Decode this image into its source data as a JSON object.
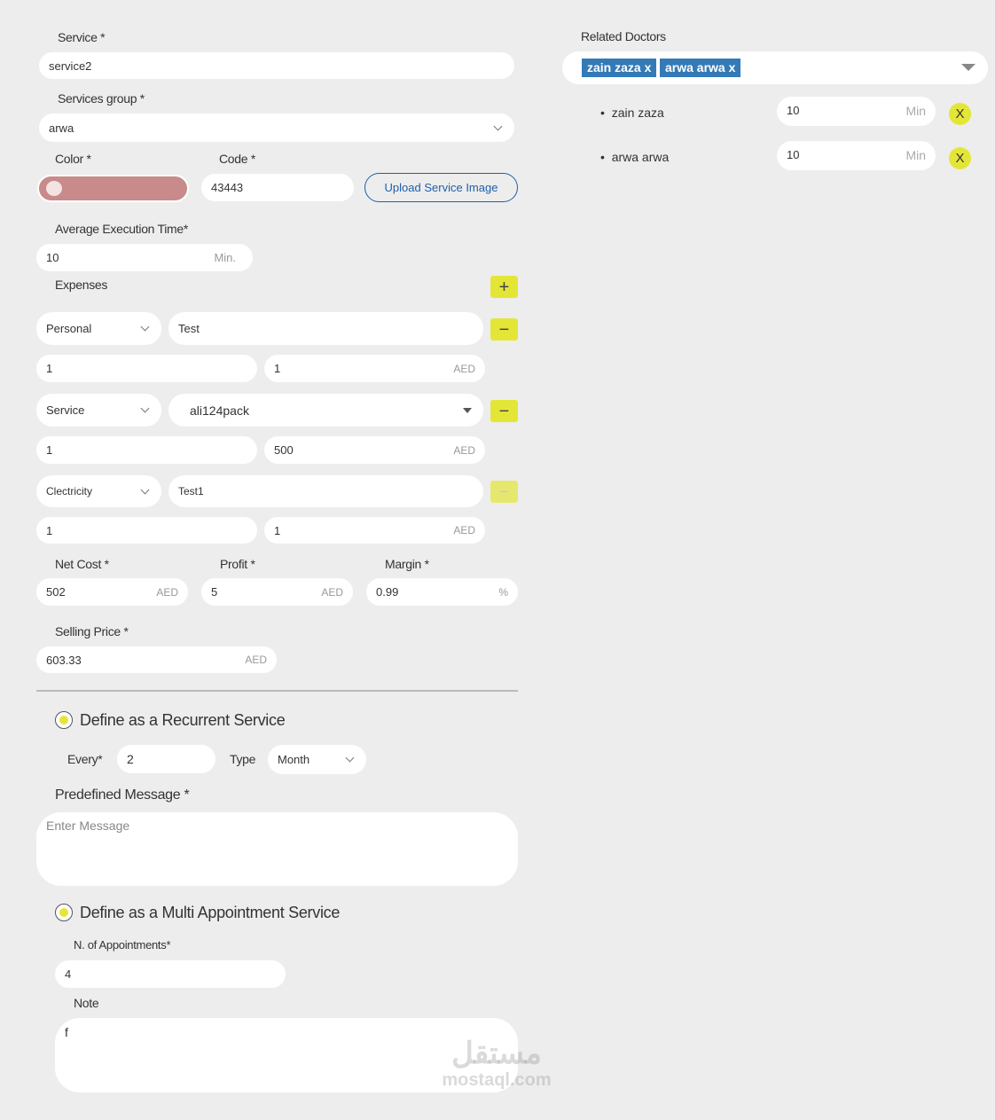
{
  "service": {
    "label": "Service *",
    "value": "service2"
  },
  "services_group": {
    "label": "Services group *",
    "value": "arwa"
  },
  "color": {
    "label": "Color *",
    "value": "#c88a8a",
    "icon": "palette-icon"
  },
  "code": {
    "label": "Code *",
    "value": "43443"
  },
  "upload_button": "Upload Service Image",
  "avg_time": {
    "label": "Average Execution Time*",
    "value": "10",
    "suffix": "Min."
  },
  "expenses": {
    "label": "Expenses",
    "rows": [
      {
        "type": "Personal",
        "name": "Test",
        "qty": "1",
        "amount": "1",
        "currency": "AED"
      },
      {
        "type": "Service",
        "name": "ali124pack",
        "qty": "1",
        "amount": "500",
        "currency": "AED"
      },
      {
        "type": "Clectricity",
        "name": "Test1",
        "qty": "1",
        "amount": "1",
        "currency": "AED"
      }
    ]
  },
  "net_cost": {
    "label": "Net Cost *",
    "value": "502",
    "suffix": "AED"
  },
  "profit": {
    "label": "Profit *",
    "value": "5",
    "suffix": "AED"
  },
  "margin": {
    "label": "Margin *",
    "value": "0.99",
    "suffix": "%"
  },
  "selling_price": {
    "label": "Selling Price *",
    "value": "603.33",
    "suffix": "AED"
  },
  "recurrent": {
    "label": "Define as a Recurrent Service",
    "every_label": "Every*",
    "every_value": "2",
    "type_label": "Type",
    "type_value": "Month"
  },
  "predefined_message": {
    "label": "Predefined Message *",
    "placeholder": "Enter Message"
  },
  "multi": {
    "label": "Define as a Multi Appointment Service",
    "count_label": "N. of Appointments*",
    "count_value": "4",
    "note_label": "Note",
    "note_value": "f"
  },
  "related_doctors": {
    "label": "Related Doctors",
    "tags": [
      "zain zaza x",
      "arwa arwa x"
    ],
    "rows": [
      {
        "name": "zain zaza",
        "value": "10",
        "suffix": "Min",
        "remove": "X"
      },
      {
        "name": "arwa arwa",
        "value": "10",
        "suffix": "Min",
        "remove": "X"
      }
    ]
  },
  "watermark": {
    "arabic": "مستقل",
    "latin": "mostaql.com"
  },
  "colors": {
    "accent": "#e4e637",
    "tag": "#337ab7",
    "upload": "#1f5fa8"
  }
}
